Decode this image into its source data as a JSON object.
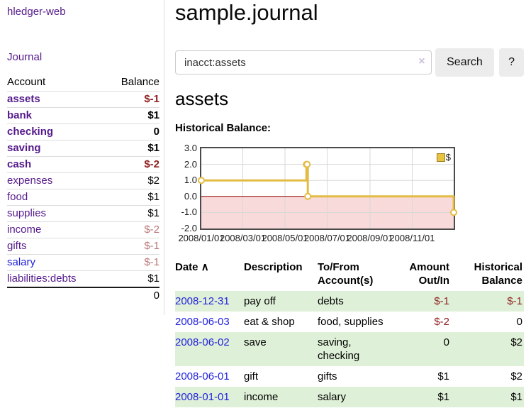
{
  "colors": {
    "link_purple": "#551a8b",
    "link_blue": "#2222dd",
    "negative_strong": "#8e1f1f",
    "negative_weak": "#bb7575",
    "row_stripe_green": "#dff0d8",
    "chart_line_gold": "#e3bc45",
    "chart_negative_fill_pink": "#f9dada",
    "chart_zero_line_red": "#8b0000",
    "chart_grid_gray": "#d8d8d8",
    "button_gray": "#ececec"
  },
  "sidebar": {
    "brand": "hledger-web",
    "nav_journal": "Journal",
    "col_account": "Account",
    "col_balance": "Balance",
    "accounts": [
      {
        "name": "assets",
        "balance": "$-1",
        "depth": 1,
        "bold": true,
        "balance_style": "neg-strong",
        "link_color": "purple"
      },
      {
        "name": "bank",
        "balance": "$1",
        "depth": 2,
        "bold": true,
        "balance_style": "pos",
        "link_color": "purple"
      },
      {
        "name": "checking",
        "balance": "0",
        "depth": 3,
        "bold": true,
        "balance_style": "pos",
        "link_color": "purple"
      },
      {
        "name": "saving",
        "balance": "$1",
        "depth": 3,
        "bold": true,
        "balance_style": "pos",
        "link_color": "purple"
      },
      {
        "name": "cash",
        "balance": "$-2",
        "depth": 2,
        "bold": true,
        "balance_style": "neg-strong",
        "link_color": "purple"
      },
      {
        "name": "expenses",
        "balance": "$2",
        "depth": 1,
        "bold": false,
        "balance_style": "pos",
        "link_color": "purple"
      },
      {
        "name": "food",
        "balance": "$1",
        "depth": 2,
        "bold": false,
        "balance_style": "pos",
        "link_color": "purple"
      },
      {
        "name": "supplies",
        "balance": "$1",
        "depth": 2,
        "bold": false,
        "balance_style": "pos",
        "link_color": "purple"
      },
      {
        "name": "income",
        "balance": "$-2",
        "depth": 1,
        "bold": false,
        "balance_style": "neg-weak",
        "link_color": "purple"
      },
      {
        "name": "gifts",
        "balance": "$-1",
        "depth": 2,
        "bold": false,
        "balance_style": "neg-weak",
        "link_color": "purple"
      },
      {
        "name": "salary",
        "balance": "$-1",
        "depth": 2,
        "bold": false,
        "balance_style": "neg-weak",
        "link_color": "blue"
      },
      {
        "name": "liabilities:debts",
        "balance": "$1",
        "depth": 1,
        "bold": false,
        "balance_style": "pos",
        "link_color": "purple"
      }
    ],
    "total": "0"
  },
  "main": {
    "title": "sample.journal",
    "search": {
      "value": "inacct:assets",
      "clear_icon": "×",
      "button_label": "Search",
      "help_label": "?"
    },
    "account_heading": "assets",
    "section_label": "Historical Balance:"
  },
  "chart_data": {
    "type": "line",
    "step": true,
    "title": "Historical Balance",
    "series": [
      {
        "name": "$",
        "x": [
          "2008-01-01",
          "2008-06-01",
          "2008-06-02",
          "2008-06-03",
          "2008-12-31"
        ],
        "values": [
          1,
          2,
          2,
          0,
          -1
        ]
      }
    ],
    "x_domain": [
      "2008-01-01",
      "2008-12-31"
    ],
    "x_tick_dates": [
      "2008-01-01",
      "2008-03-01",
      "2008-05-01",
      "2008-07-01",
      "2008-09-01",
      "2008-11-01"
    ],
    "x_tick_labels": [
      "2008/01/01",
      "2008/03/01",
      "2008/05/01",
      "2008/07/01",
      "2008/09/01",
      "2008/11/01"
    ],
    "y_ticks": [
      3.0,
      2.0,
      1.0,
      0.0,
      -1.0,
      -2.0
    ],
    "ylim": [
      -2,
      3
    ],
    "grid": true,
    "legend_entries": [
      "$"
    ],
    "legend_position": "top-right",
    "negative_region_below_zero": true
  },
  "register": {
    "columns": [
      {
        "label": "Date"
      },
      {
        "label": "Description"
      },
      {
        "label": "To/From Account(s)"
      },
      {
        "label": "Amount Out/In"
      },
      {
        "label": "Historical Balance"
      }
    ],
    "sort_icon": "∧",
    "sort_column": "Date",
    "sort_direction": "ascending",
    "rows": [
      {
        "date": "2008-12-31",
        "description": "pay off",
        "accounts": "debts",
        "amount": "$-1",
        "amount_neg": true,
        "balance": "$-1",
        "balance_neg": true
      },
      {
        "date": "2008-06-03",
        "description": "eat & shop",
        "accounts": "food, supplies",
        "amount": "$-2",
        "amount_neg": true,
        "balance": "0",
        "balance_neg": false
      },
      {
        "date": "2008-06-02",
        "description": "save",
        "accounts": "saving, checking",
        "amount": "0",
        "amount_neg": false,
        "balance": "$2",
        "balance_neg": false
      },
      {
        "date": "2008-06-01",
        "description": "gift",
        "accounts": "gifts",
        "amount": "$1",
        "amount_neg": false,
        "balance": "$2",
        "balance_neg": false
      },
      {
        "date": "2008-01-01",
        "description": "income",
        "accounts": "salary",
        "amount": "$1",
        "amount_neg": false,
        "balance": "$1",
        "balance_neg": false
      }
    ]
  }
}
